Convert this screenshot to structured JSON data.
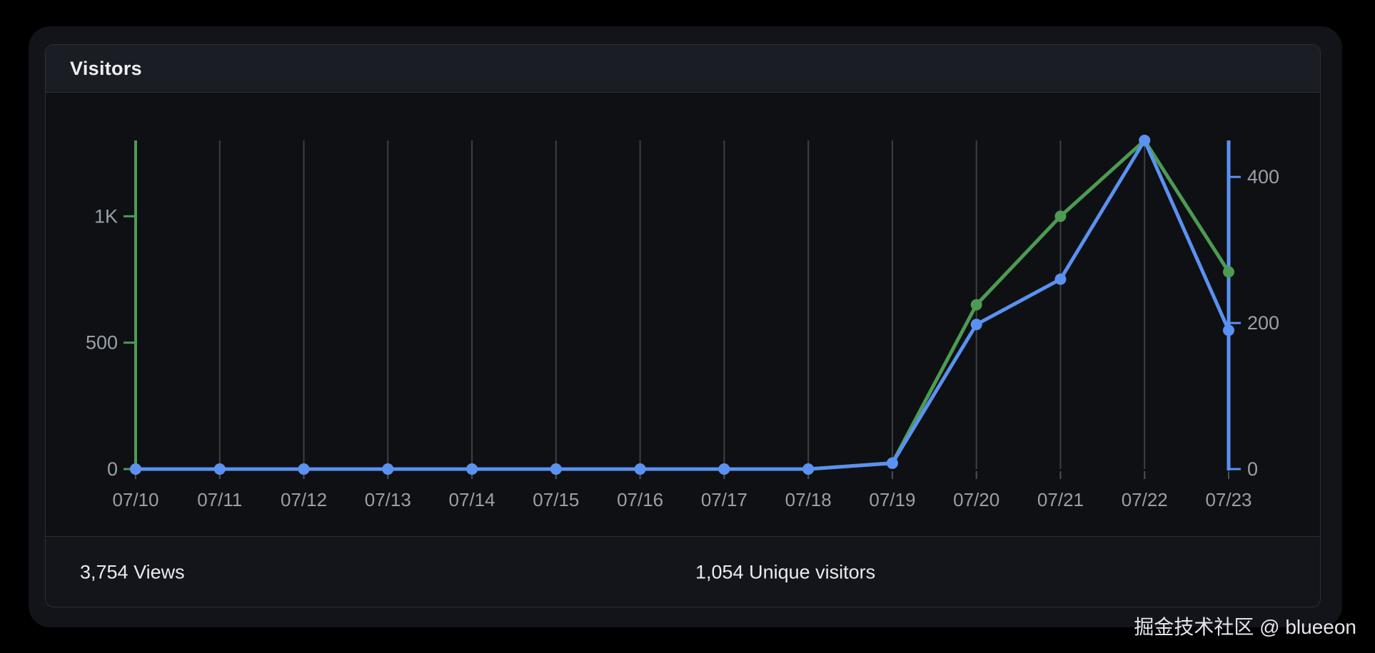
{
  "card": {
    "title": "Visitors"
  },
  "footer": {
    "views_stat": "3,754 Views",
    "unique_stat": "1,054 Unique visitors"
  },
  "watermark": "掘金技术社区 @ blueeon",
  "chart_data": {
    "type": "line",
    "title": "Visitors",
    "categories": [
      "07/10",
      "07/11",
      "07/12",
      "07/13",
      "07/14",
      "07/15",
      "07/16",
      "07/17",
      "07/18",
      "07/19",
      "07/20",
      "07/21",
      "07/22",
      "07/23"
    ],
    "series": [
      {
        "name": "Views",
        "axis": "left",
        "color": "#4c9b52",
        "line_width": 5,
        "point_radius": 8,
        "values": [
          0,
          0,
          0,
          0,
          0,
          0,
          0,
          0,
          0,
          24,
          650,
          1000,
          1300,
          780
        ]
      },
      {
        "name": "Unique visitors",
        "axis": "right",
        "color": "#5b91f0",
        "line_width": 5,
        "point_radius": 8,
        "values": [
          0,
          0,
          0,
          0,
          0,
          0,
          0,
          0,
          0,
          8,
          198,
          260,
          450,
          190
        ]
      }
    ],
    "left_axis": {
      "min": 0,
      "max": 1300,
      "ticks": [
        0,
        500,
        1000
      ],
      "tick_labels": [
        "0",
        "500",
        "1K"
      ],
      "color": "#4c9b52",
      "axis_width": 4
    },
    "right_axis": {
      "min": 0,
      "max": 450,
      "ticks": [
        0,
        200,
        400
      ],
      "tick_labels": [
        "0",
        "200",
        "400"
      ],
      "color": "#5b91f0",
      "axis_width": 5
    },
    "grid": {
      "vertical": true,
      "horizontal": false
    },
    "legend_position": "none",
    "label_color": "#9aa0a8",
    "gridline_color": "#3c4046",
    "xtick_color": "#4b4f55",
    "axis_label_font_size": 27,
    "x_label_font_size": 26,
    "totals": {
      "views": "3,754",
      "unique_visitors": "1,054"
    }
  }
}
